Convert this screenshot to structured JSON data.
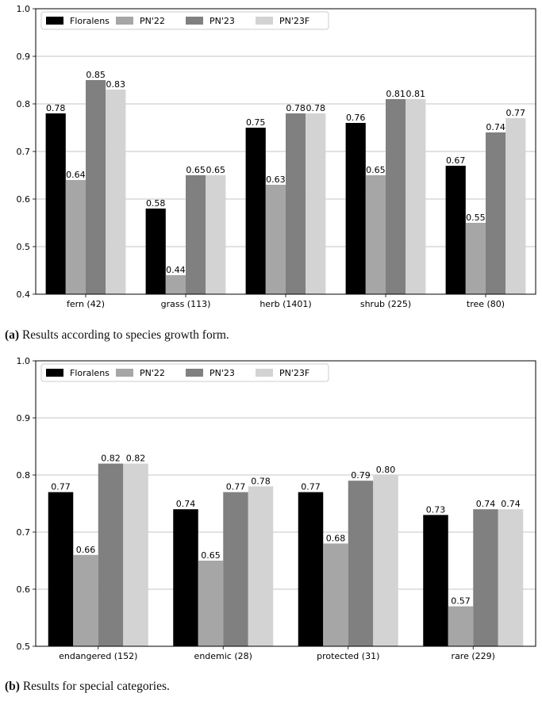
{
  "chart_data": [
    {
      "type": "bar",
      "categories": [
        "fern (42)",
        "grass (113)",
        "herb (1401)",
        "shrub (225)",
        "tree (80)"
      ],
      "series": [
        {
          "name": "Floralens",
          "color": "#000000",
          "values": [
            0.78,
            0.58,
            0.75,
            0.76,
            0.67
          ]
        },
        {
          "name": "PN'22",
          "color": "#a6a6a6",
          "values": [
            0.64,
            0.44,
            0.63,
            0.65,
            0.55
          ]
        },
        {
          "name": "PN'23",
          "color": "#808080",
          "values": [
            0.85,
            0.65,
            0.78,
            0.81,
            0.74
          ]
        },
        {
          "name": "PN'23F",
          "color": "#d3d3d3",
          "values": [
            0.83,
            0.65,
            0.78,
            0.81,
            0.77
          ]
        }
      ],
      "bar_labels": [
        [
          "0.78",
          "0.58",
          "0.75",
          "0.76",
          "0.67"
        ],
        [
          "0.64",
          "0.44",
          "0.63",
          "0.65",
          "0.55"
        ],
        [
          "0.85",
          "0.65",
          "0.78",
          "0.81",
          "0.74"
        ],
        [
          "0.83",
          "0.65",
          "0.78",
          "0.81",
          "0.77"
        ]
      ],
      "y_ticks": [
        "0.4",
        "0.5",
        "0.6",
        "0.7",
        "0.8",
        "0.9",
        "1.0"
      ],
      "ylim": [
        0.4,
        1.0
      ],
      "grid": "horizontal",
      "legend": "top",
      "xlabel": "",
      "ylabel": "",
      "title": ""
    },
    {
      "type": "bar",
      "categories": [
        "endangered (152)",
        "endemic (28)",
        "protected (31)",
        "rare (229)"
      ],
      "series": [
        {
          "name": "Floralens",
          "color": "#000000",
          "values": [
            0.77,
            0.74,
            0.77,
            0.73
          ]
        },
        {
          "name": "PN'22",
          "color": "#a6a6a6",
          "values": [
            0.66,
            0.65,
            0.68,
            0.57
          ]
        },
        {
          "name": "PN'23",
          "color": "#808080",
          "values": [
            0.82,
            0.77,
            0.79,
            0.74
          ]
        },
        {
          "name": "PN'23F",
          "color": "#d3d3d3",
          "values": [
            0.82,
            0.78,
            0.8,
            0.74
          ]
        }
      ],
      "bar_labels": [
        [
          "0.77",
          "0.74",
          "0.77",
          "0.73"
        ],
        [
          "0.66",
          "0.65",
          "0.68",
          "0.57"
        ],
        [
          "0.82",
          "0.77",
          "0.79",
          "0.74"
        ],
        [
          "0.82",
          "0.78",
          "0.80",
          "0.74"
        ]
      ],
      "y_ticks": [
        "0.5",
        "0.6",
        "0.7",
        "0.8",
        "0.9",
        "1.0"
      ],
      "ylim": [
        0.5,
        1.0
      ],
      "grid": "horizontal",
      "legend": "top",
      "xlabel": "",
      "ylabel": "",
      "title": ""
    }
  ],
  "captions": {
    "a_label": "(a)",
    "a_text": " Results according to species growth form.",
    "b_label": "(b)",
    "b_text": " Results for special categories."
  }
}
